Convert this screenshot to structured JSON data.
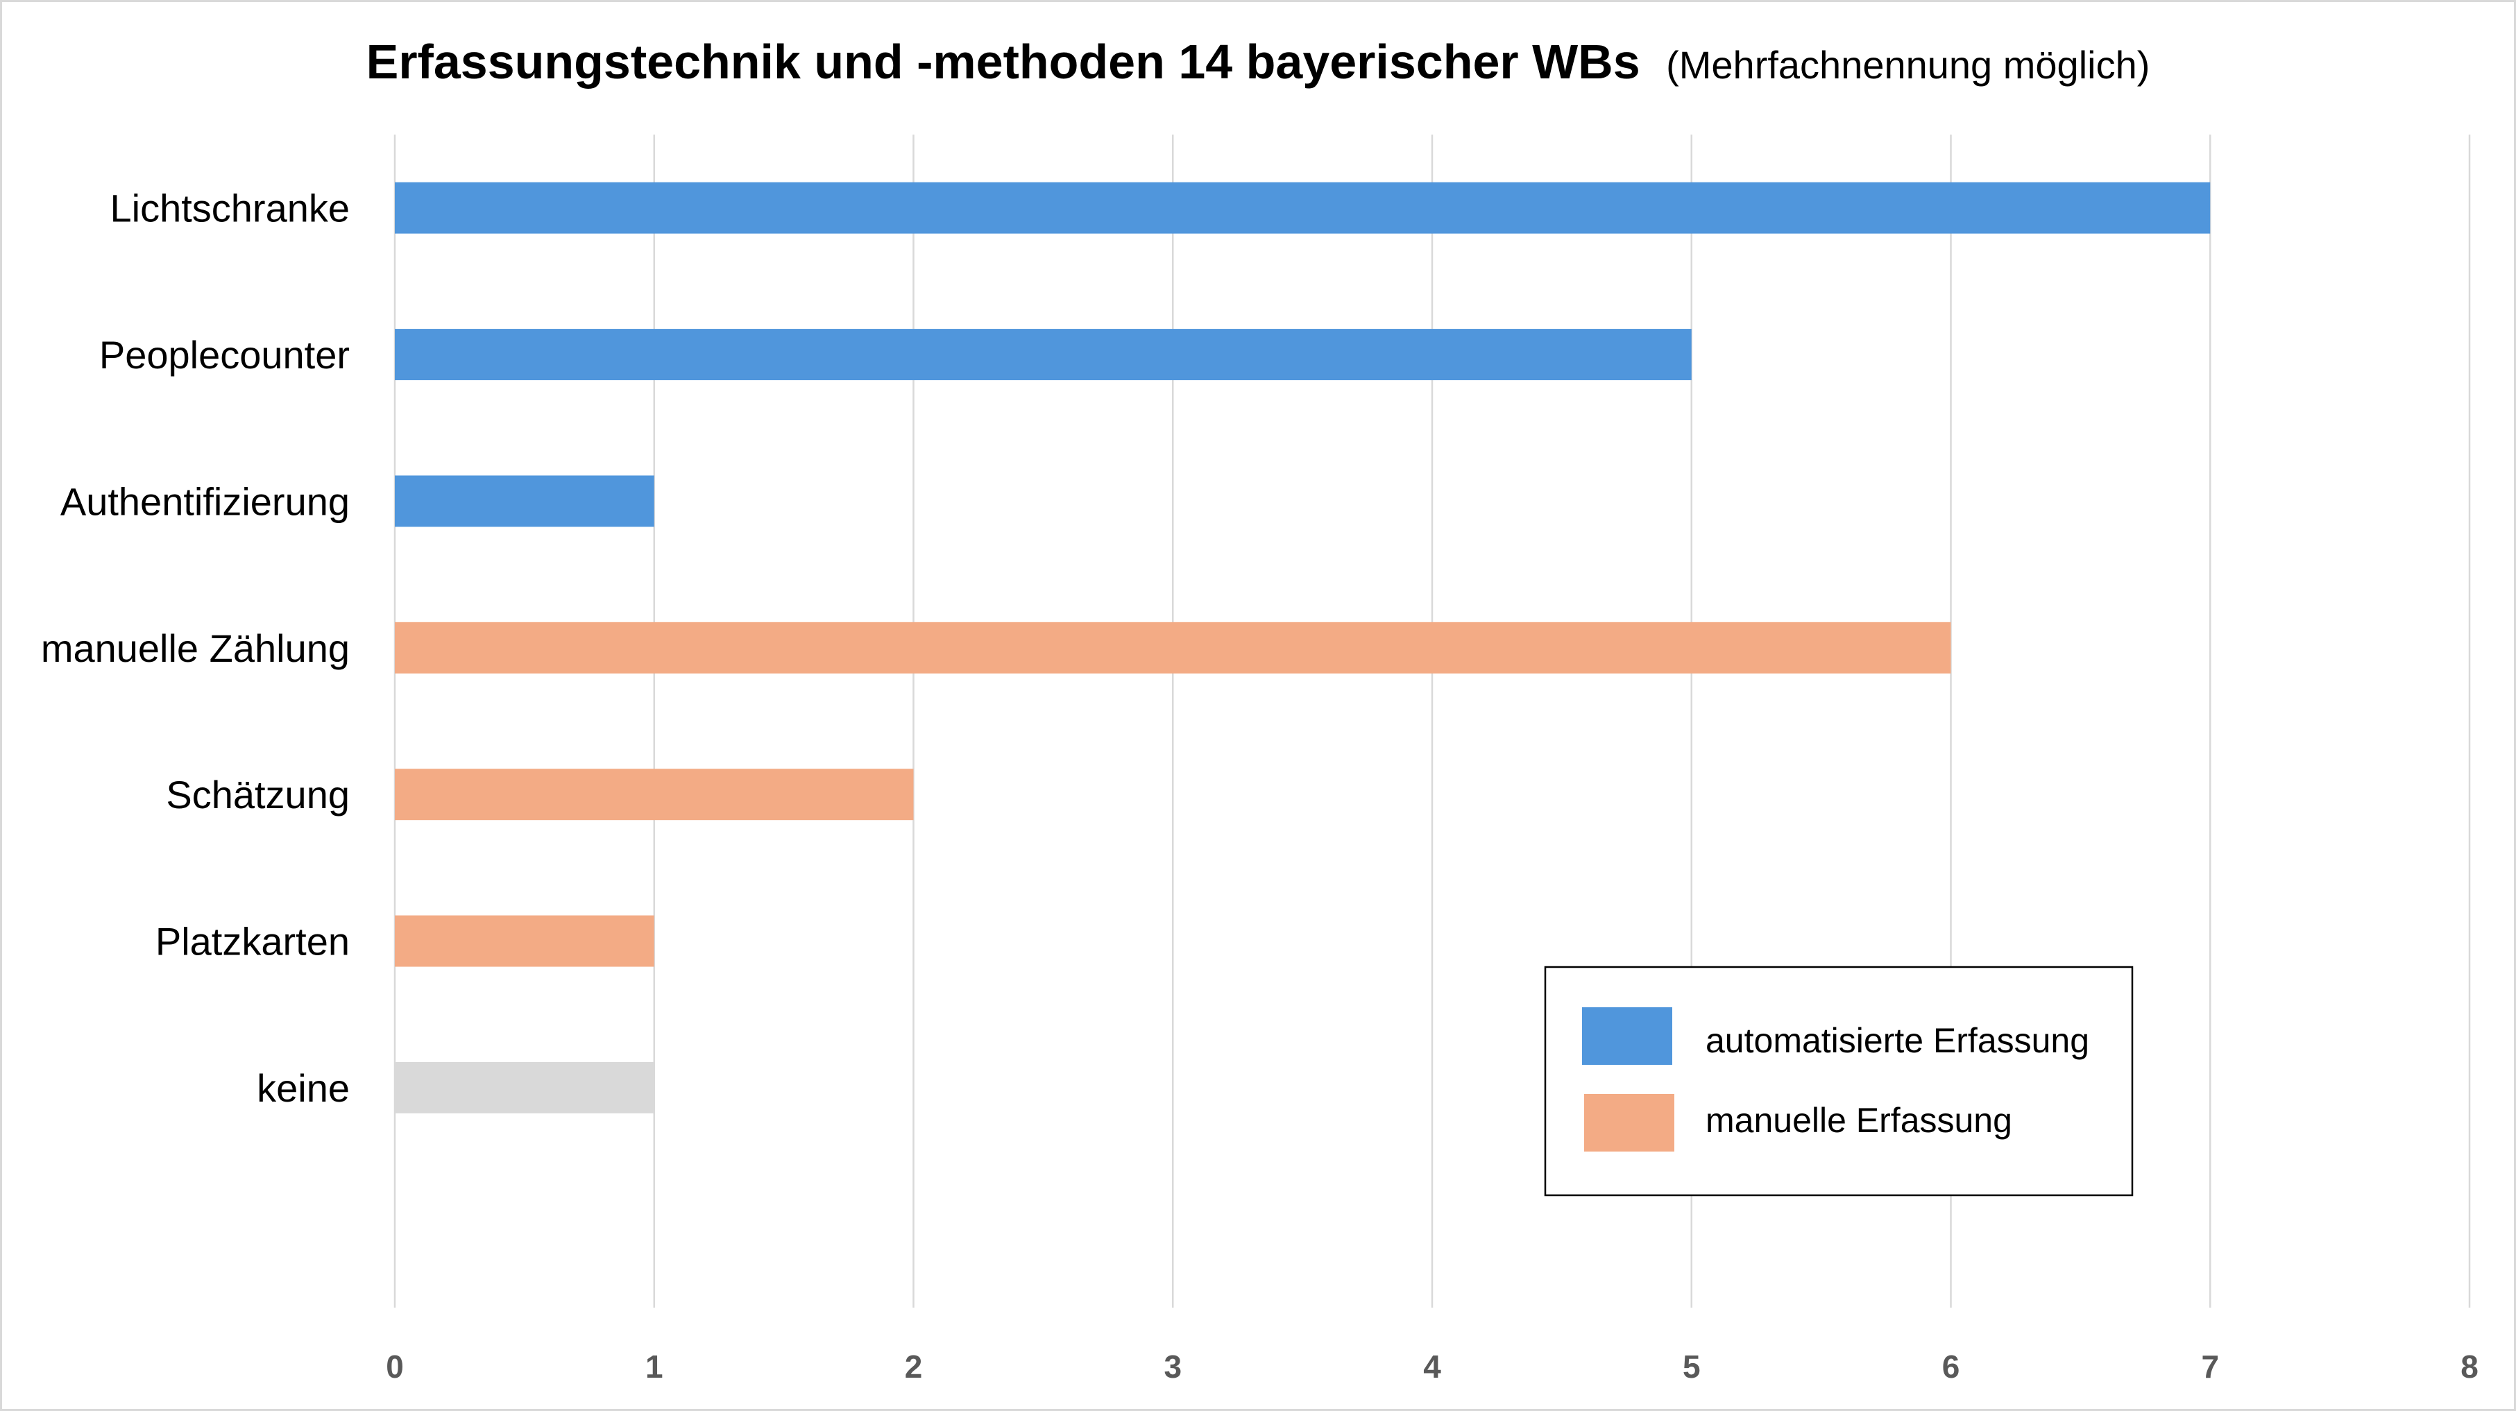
{
  "chart_data": {
    "type": "bar",
    "orientation": "horizontal",
    "title": "Erfassungstechnik und -methoden 14 bayerischer WBs",
    "subtitle": "(Mehrfachnennung möglich)",
    "categories": [
      "Lichtschranke",
      "Peoplecounter",
      "Authentifizierung",
      "manuelle Zählung",
      "Schätzung",
      "Platzkarten",
      "keine"
    ],
    "values": [
      7,
      5,
      1,
      6,
      2,
      1,
      1
    ],
    "bar_colors": [
      "#5096DC",
      "#5096DC",
      "#5096DC",
      "#F3AB85",
      "#F3AB85",
      "#F3AB85",
      "#D9D9D9"
    ],
    "xlim": [
      0,
      8
    ],
    "xticks": [
      0,
      1,
      2,
      3,
      4,
      5,
      6,
      7,
      8
    ],
    "grid": true,
    "legend_position": "bottom-right",
    "legend": [
      {
        "label": "automatisierte Erfassung",
        "color": "#5096DC"
      },
      {
        "label": "manuelle Erfassung",
        "color": "#F3AB85"
      }
    ]
  }
}
